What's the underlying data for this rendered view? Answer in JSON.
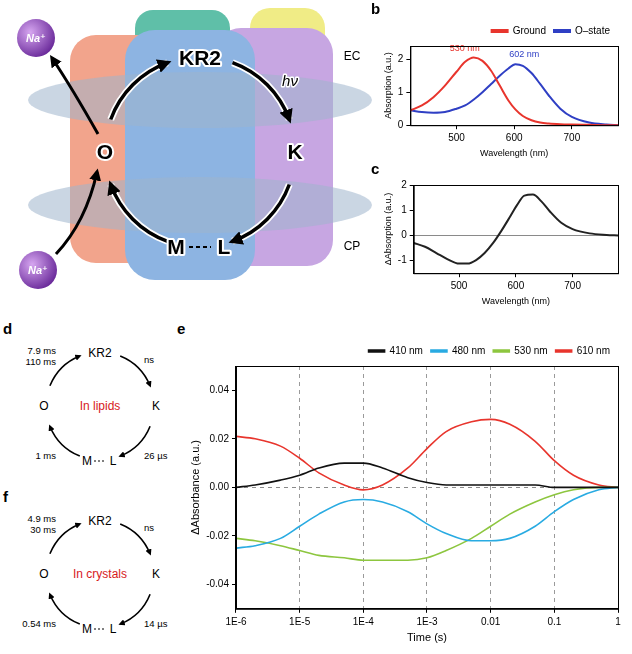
{
  "chart_data": [
    {
      "panel": "b",
      "type": "line",
      "x_label": "Wavelength (nm)",
      "y_label": "Absorption (a.u.)",
      "x": [
        420,
        440,
        460,
        480,
        500,
        515,
        530,
        545,
        560,
        575,
        590,
        602,
        615,
        630,
        645,
        660,
        680,
        700,
        730,
        760,
        780
      ],
      "series": [
        {
          "name": "Ground",
          "color": "#e8352d",
          "values": [
            0.45,
            0.6,
            0.85,
            1.2,
            1.62,
            1.92,
            2.05,
            1.95,
            1.65,
            1.2,
            0.75,
            0.48,
            0.28,
            0.15,
            0.08,
            0.05,
            0.03,
            0.02,
            0.01,
            0,
            0
          ]
        },
        {
          "name": "O–state",
          "color": "#2f3fc4",
          "values": [
            0.45,
            0.4,
            0.38,
            0.4,
            0.5,
            0.6,
            0.78,
            1.0,
            1.25,
            1.5,
            1.72,
            1.85,
            1.8,
            1.58,
            1.25,
            0.9,
            0.5,
            0.25,
            0.08,
            0.02,
            0
          ]
        }
      ],
      "annotations": [
        {
          "text": "530 nm",
          "series": "Ground"
        },
        {
          "text": "602 nm",
          "series": "O–state"
        }
      ],
      "xlim": [
        420,
        780
      ],
      "xticks": [
        500,
        600,
        700
      ],
      "ylim": [
        0,
        2.4
      ],
      "yticks": [
        0,
        1,
        2
      ],
      "grid": false,
      "legend": "top-right"
    },
    {
      "panel": "c",
      "type": "line",
      "x_label": "Wavelength (nm)",
      "y_label": "ΔAbsorption (a.u.)",
      "x": [
        420,
        440,
        460,
        480,
        500,
        515,
        530,
        545,
        560,
        575,
        590,
        602,
        615,
        630,
        645,
        660,
        680,
        700,
        730,
        760,
        780
      ],
      "series": [
        {
          "color": "#222222",
          "values": [
            -0.3,
            -0.45,
            -0.7,
            -0.95,
            -1.12,
            -1.12,
            -0.98,
            -0.7,
            -0.3,
            0.2,
            0.75,
            1.2,
            1.58,
            1.62,
            1.35,
            0.95,
            0.5,
            0.25,
            0.08,
            0.02,
            0
          ]
        }
      ],
      "xlim": [
        420,
        780
      ],
      "xticks": [
        500,
        600,
        700
      ],
      "ylim": [
        -1.5,
        2
      ],
      "yticks": [
        -1,
        0,
        1,
        2
      ],
      "grid": false
    },
    {
      "panel": "e",
      "type": "line",
      "log": "x",
      "x_label": "Time (s)",
      "y_label": "ΔAbsorbance (a.u.)",
      "x": [
        1e-06,
        2e-06,
        5e-06,
        1e-05,
        2e-05,
        5e-05,
        0.0001,
        0.0002,
        0.0005,
        0.001,
        0.002,
        0.005,
        0.01,
        0.02,
        0.05,
        0.1,
        0.2,
        0.5,
        1
      ],
      "series": [
        {
          "name": "410 nm",
          "color": "#111111",
          "values": [
            0.0,
            0.001,
            0.003,
            0.005,
            0.008,
            0.01,
            0.01,
            0.008,
            0.004,
            0.002,
            0.001,
            0.001,
            0.001,
            0.001,
            0.001,
            0.0,
            0.0,
            0.0,
            0.0
          ]
        },
        {
          "name": "480 nm",
          "color": "#29abe2",
          "values": [
            -0.025,
            -0.024,
            -0.021,
            -0.016,
            -0.011,
            -0.006,
            -0.005,
            -0.006,
            -0.01,
            -0.015,
            -0.019,
            -0.022,
            -0.022,
            -0.021,
            -0.016,
            -0.01,
            -0.005,
            -0.001,
            0.0
          ]
        },
        {
          "name": "530 nm",
          "color": "#8dc63f",
          "values": [
            -0.021,
            -0.022,
            -0.024,
            -0.026,
            -0.028,
            -0.029,
            -0.03,
            -0.03,
            -0.03,
            -0.029,
            -0.026,
            -0.021,
            -0.016,
            -0.011,
            -0.006,
            -0.003,
            -0.001,
            0.0,
            0.0
          ]
        },
        {
          "name": "610 nm",
          "color": "#e8352d",
          "values": [
            0.021,
            0.02,
            0.017,
            0.012,
            0.006,
            0.001,
            -0.001,
            0.001,
            0.008,
            0.016,
            0.023,
            0.027,
            0.028,
            0.026,
            0.019,
            0.011,
            0.005,
            0.001,
            0.0
          ]
        }
      ],
      "xlim": [
        1e-06,
        1
      ],
      "xticks": [
        {
          "value": 1e-06,
          "label": "1E-6"
        },
        {
          "value": 1e-05,
          "label": "1E-5"
        },
        {
          "value": 0.0001,
          "label": "1E-4"
        },
        {
          "value": 0.001,
          "label": "1E-3"
        },
        0.01,
        0.1,
        1
      ],
      "ylim": [
        -0.05,
        0.05
      ],
      "yticks": [
        -0.04,
        -0.02,
        {
          "value": 0,
          "label": "0.00"
        },
        0.02,
        0.04
      ],
      "grid": true,
      "legend": "top-right"
    }
  ],
  "diagrams": [
    {
      "states": [
        "KR2",
        "K",
        "M",
        "L",
        "O"
      ],
      "ion": "Na⁺",
      "light": "hν",
      "sides": [
        "EC",
        "CP"
      ]
    },
    {
      "panel": "d",
      "title": "In lipids",
      "states": [
        "KR2",
        "K",
        "M",
        "L",
        "O"
      ],
      "transitions": [
        {
          "from": "KR2",
          "to": "K",
          "times": [
            "ns"
          ]
        },
        {
          "from": "K",
          "to": "L",
          "times": [
            "26 µs"
          ]
        },
        {
          "from": "M",
          "to": "O",
          "times": [
            "1 ms"
          ]
        },
        {
          "from": "O",
          "to": "KR2",
          "times": [
            "7.9 ms",
            "110 ms"
          ]
        }
      ]
    },
    {
      "panel": "f",
      "title": "In crystals",
      "states": [
        "KR2",
        "K",
        "M",
        "L",
        "O"
      ],
      "transitions": [
        {
          "from": "KR2",
          "to": "K",
          "times": [
            "ns"
          ]
        },
        {
          "from": "K",
          "to": "L",
          "times": [
            "14 µs"
          ]
        },
        {
          "from": "M",
          "to": "O",
          "times": [
            "0.54 ms"
          ]
        },
        {
          "from": "O",
          "to": "KR2",
          "times": [
            "4.9 ms",
            "30 ms"
          ]
        }
      ]
    }
  ]
}
